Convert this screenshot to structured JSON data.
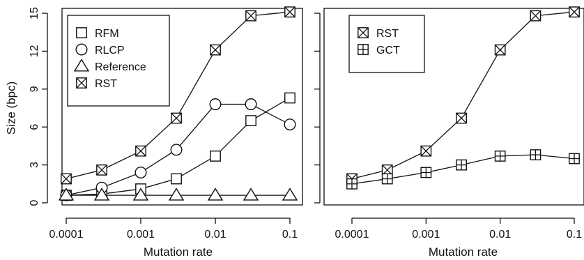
{
  "chart_data": [
    {
      "type": "line",
      "panel": "left",
      "xscale": "log",
      "xlim": [
        0.0001,
        0.1
      ],
      "ylim": [
        0,
        15
      ],
      "xticks": [
        0.0001,
        0.001,
        0.01,
        0.1
      ],
      "xtick_labels": [
        "0.0001",
        "0.001",
        "0.01",
        "0.1"
      ],
      "yticks": [
        0,
        3,
        6,
        9,
        12,
        15
      ],
      "ytick_labels": [
        "0",
        "3",
        "6",
        "9",
        "12",
        "15"
      ],
      "xlabel": "Mutation rate",
      "ylabel": "Size (bpc)",
      "legend_position": "top-left",
      "x": [
        0.0001,
        0.0003,
        0.001,
        0.003,
        0.01,
        0.03,
        0.1
      ],
      "series": [
        {
          "name": "RFM",
          "marker": "square",
          "values": [
            0.6,
            0.7,
            1.1,
            1.9,
            3.7,
            6.5,
            8.3
          ]
        },
        {
          "name": "RLCP",
          "marker": "circle",
          "values": [
            0.6,
            1.2,
            2.4,
            4.2,
            7.8,
            7.8,
            6.2
          ]
        },
        {
          "name": "Reference",
          "marker": "triangle",
          "values": [
            0.6,
            0.6,
            0.6,
            0.6,
            0.6,
            0.6,
            0.6
          ]
        },
        {
          "name": "RST",
          "marker": "boxed-x",
          "values": [
            1.9,
            2.6,
            4.1,
            6.7,
            12.1,
            14.8,
            15.1
          ]
        }
      ]
    },
    {
      "type": "line",
      "panel": "right",
      "xscale": "log",
      "xlim": [
        0.0001,
        0.1
      ],
      "ylim": [
        0,
        15
      ],
      "xticks": [
        0.0001,
        0.001,
        0.01,
        0.1
      ],
      "xtick_labels": [
        "0.0001",
        "0.001",
        "0.01",
        "0.1"
      ],
      "xlabel": "Mutation rate",
      "legend_position": "top-left",
      "x": [
        0.0001,
        0.0003,
        0.001,
        0.003,
        0.01,
        0.03,
        0.1
      ],
      "series": [
        {
          "name": "RST",
          "marker": "boxed-x",
          "values": [
            1.9,
            2.6,
            4.1,
            6.7,
            12.1,
            14.8,
            15.1
          ]
        },
        {
          "name": "GCT",
          "marker": "boxed-plus",
          "values": [
            1.5,
            1.9,
            2.4,
            3.0,
            3.7,
            3.8,
            3.5
          ]
        }
      ]
    }
  ]
}
